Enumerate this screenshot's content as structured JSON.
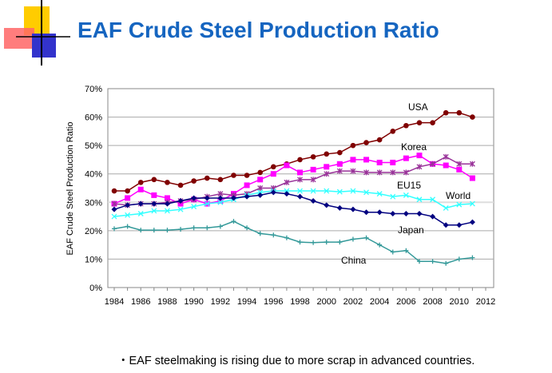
{
  "title": "EAF Crude Steel Production Ratio",
  "note": "・EAF steelmaking is rising due to more scrap in advanced countries.",
  "chart_data": {
    "type": "line",
    "title": "",
    "xlabel": "",
    "ylabel": "EAF Crude Steel Production Ratio",
    "xlim": [
      1984,
      2012
    ],
    "ylim": [
      0,
      70
    ],
    "x_ticks": [
      1984,
      1986,
      1988,
      1990,
      1992,
      1994,
      1996,
      1998,
      2000,
      2002,
      2004,
      2006,
      2008,
      2010,
      2012
    ],
    "y_ticks": [
      "0%",
      "10%",
      "20%",
      "30%",
      "40%",
      "50%",
      "60%",
      "70%"
    ],
    "grid": "horizontal",
    "x": [
      1984,
      1985,
      1986,
      1987,
      1988,
      1989,
      1990,
      1991,
      1992,
      1993,
      1994,
      1995,
      1996,
      1997,
      1998,
      1999,
      2000,
      2001,
      2002,
      2003,
      2004,
      2005,
      2006,
      2007,
      2008,
      2009,
      2010,
      2011
    ],
    "series": [
      {
        "name": "USA",
        "color": "#800000",
        "marker": "circle",
        "values": [
          34,
          34,
          37,
          38,
          37,
          36,
          37.5,
          38.5,
          38,
          39.5,
          39.5,
          40.5,
          42.5,
          43.5,
          45,
          46,
          47,
          47.5,
          50,
          51,
          52,
          55,
          57,
          58,
          58,
          61.5,
          61.5,
          60
        ]
      },
      {
        "name": "Korea",
        "color": "#ff00ff",
        "marker": "square",
        "values": [
          29.5,
          31.5,
          34.5,
          32.5,
          31.5,
          29.5,
          31,
          29.5,
          30.5,
          33,
          36,
          38,
          40,
          43,
          40.5,
          41.5,
          42.5,
          43.5,
          45,
          45,
          44,
          44,
          45.5,
          46.5,
          43.5,
          43,
          41.5,
          38.5
        ]
      },
      {
        "name": "EU15",
        "color": "#993399",
        "marker": "asterisk",
        "values": [
          29.5,
          29,
          29.5,
          29.5,
          30,
          30.5,
          31,
          32,
          33,
          32.5,
          33,
          35,
          35,
          37,
          38,
          38,
          40,
          41,
          41,
          40.5,
          40.5,
          40.5,
          40.5,
          42.5,
          43.5,
          46,
          43.5,
          43.5
        ]
      },
      {
        "name": "World",
        "color": "#33ffff",
        "marker": "x",
        "values": [
          25,
          25.5,
          26,
          27,
          27,
          27.5,
          28.5,
          29.5,
          30,
          31,
          32.5,
          33.5,
          34,
          34,
          34,
          34,
          34,
          33.7,
          34,
          33.5,
          33,
          32,
          32.5,
          31,
          31,
          28,
          29.2,
          29.5
        ]
      },
      {
        "name": "Japan",
        "color": "#000080",
        "marker": "diamond",
        "values": [
          27.5,
          29,
          29.5,
          29.5,
          29.5,
          30.5,
          31.5,
          31.5,
          31.5,
          31.5,
          32,
          32.5,
          33.5,
          33,
          32,
          30.5,
          29,
          28,
          27.5,
          26.5,
          26.5,
          26,
          26,
          26,
          25,
          22,
          22,
          23
        ]
      },
      {
        "name": "China",
        "color": "#339999",
        "marker": "plus",
        "values": [
          20.7,
          21.5,
          20.2,
          20.2,
          20.2,
          20.5,
          21,
          21,
          21.5,
          23.3,
          21,
          19,
          18.5,
          17.5,
          16,
          15.8,
          16,
          16,
          17,
          17.5,
          15,
          12.5,
          13,
          9.2,
          9.2,
          8.5,
          10,
          10.5
        ]
      }
    ],
    "annotations": [
      "USA",
      "Korea",
      "EU15",
      "World",
      "Japan",
      "China"
    ]
  }
}
